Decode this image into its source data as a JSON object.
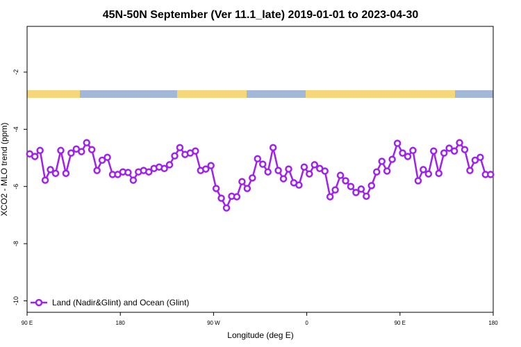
{
  "chart_data": {
    "type": "line",
    "title": "45N-50N September (Ver 11.1_late)   2019-01-01 to 2023-04-30",
    "x_label": "Longitude (deg E)",
    "y_label": "XCO2 - MLO trend (ppm)",
    "xlim": [
      90,
      540
    ],
    "ylim": [
      -10.4,
      -0.4
    ],
    "xticks": [
      {
        "value": 90,
        "label": "90 E"
      },
      {
        "value": 180,
        "label": "180"
      },
      {
        "value": 270,
        "label": "90 W"
      },
      {
        "value": 360,
        "label": "0"
      },
      {
        "value": 450,
        "label": "90 E"
      },
      {
        "value": 540,
        "label": "180"
      }
    ],
    "yticks": [
      -2,
      -4,
      -6,
      -8,
      -10
    ],
    "legend": "bottom-left",
    "x": [
      92.5,
      97.5,
      102.5,
      107.5,
      112.5,
      117.5,
      122.5,
      127.5,
      132.5,
      137.5,
      142.5,
      147.5,
      152.5,
      157.5,
      162.5,
      167.5,
      172.5,
      177.5,
      182.5,
      187.5,
      192.5,
      197.5,
      202.5,
      207.5,
      212.5,
      217.5,
      222.5,
      227.5,
      232.5,
      237.5,
      242.5,
      247.5,
      252.5,
      257.5,
      262.5,
      267.5,
      272.5,
      277.5,
      282.5,
      287.5,
      292.5,
      297.5,
      302.5,
      307.5,
      312.5,
      317.5,
      322.5,
      327.5,
      332.5,
      337.5,
      342.5,
      347.5,
      352.5,
      357.5,
      362.5,
      367.5,
      372.5,
      377.5,
      382.5,
      387.5,
      392.5,
      397.5,
      402.5,
      407.5,
      412.5,
      417.5,
      422.5,
      427.5,
      432.5,
      437.5,
      442.5,
      447.5,
      452.5,
      457.5,
      462.5,
      467.5,
      472.5,
      477.5,
      482.5,
      487.5,
      492.5,
      497.5,
      502.5,
      507.5,
      512.5,
      517.5,
      522.5,
      527.5,
      532.5,
      537.5
    ],
    "series": [
      {
        "name": "Land (Nadir&Glint) and Ocean (Glint)",
        "color": "#a020f0",
        "values": [
          -4.86,
          -4.95,
          -4.74,
          -5.78,
          -5.41,
          -5.54,
          -4.74,
          -5.54,
          -4.83,
          -4.69,
          -4.78,
          -4.47,
          -4.71,
          -5.44,
          -5.08,
          -4.98,
          -5.58,
          -5.58,
          -5.49,
          -5.51,
          -5.78,
          -5.49,
          -5.44,
          -5.49,
          -5.37,
          -5.32,
          -5.37,
          -5.24,
          -4.93,
          -4.64,
          -4.88,
          -4.83,
          -4.76,
          -5.44,
          -5.39,
          -5.27,
          -6.07,
          -6.41,
          -6.75,
          -6.34,
          -6.36,
          -5.83,
          -6.07,
          -5.7,
          -5.03,
          -5.22,
          -5.49,
          -4.64,
          -5.44,
          -5.73,
          -5.39,
          -5.87,
          -5.95,
          -5.32,
          -5.56,
          -5.24,
          -5.37,
          -5.46,
          -6.36,
          -6.12,
          -5.61,
          -5.8,
          -6.0,
          -6.21,
          -6.09,
          -6.34,
          -5.97,
          -5.49,
          -5.12,
          -5.46,
          -5.05,
          -4.49,
          -4.83,
          -4.95,
          -4.74,
          -5.8,
          -5.41,
          -5.56,
          -4.76,
          -5.54,
          -4.83,
          -4.66,
          -4.76,
          -4.47,
          -4.71,
          -5.44,
          -5.08,
          -4.98,
          -5.58,
          -5.58
        ]
      }
    ]
  }
}
